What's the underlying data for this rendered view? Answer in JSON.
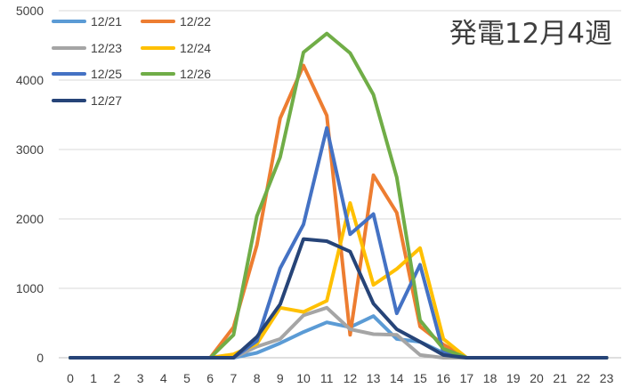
{
  "chart_data": {
    "type": "line",
    "title": "発電12月4週",
    "x": [
      0,
      1,
      2,
      3,
      4,
      5,
      6,
      7,
      8,
      9,
      10,
      11,
      12,
      13,
      14,
      15,
      16,
      17,
      18,
      19,
      20,
      21,
      22,
      23
    ],
    "x_ticks": [
      "0",
      "1",
      "2",
      "3",
      "4",
      "5",
      "6",
      "7",
      "8",
      "9",
      "10",
      "11",
      "12",
      "13",
      "14",
      "15",
      "16",
      "17",
      "18",
      "19",
      "20",
      "21",
      "22",
      "23"
    ],
    "ylim": [
      0,
      5000
    ],
    "y_ticks": [
      "0",
      "1000",
      "2000",
      "3000",
      "4000",
      "5000"
    ],
    "grid": "horizontal",
    "legend_position": "top-left",
    "series": [
      {
        "name": "12/21",
        "color": "#5B9BD5",
        "values": [
          0,
          0,
          0,
          0,
          0,
          0,
          0,
          0,
          70,
          210,
          370,
          510,
          440,
          600,
          270,
          230,
          70,
          0,
          0,
          0,
          0,
          0,
          0,
          0
        ]
      },
      {
        "name": "12/22",
        "color": "#ED7D31",
        "values": [
          0,
          0,
          0,
          0,
          0,
          0,
          0,
          440,
          1620,
          3450,
          4210,
          3490,
          330,
          2630,
          2090,
          450,
          190,
          0,
          0,
          0,
          0,
          0,
          0,
          0
        ]
      },
      {
        "name": "12/23",
        "color": "#A5A5A5",
        "values": [
          0,
          0,
          0,
          0,
          0,
          0,
          0,
          0,
          160,
          270,
          610,
          720,
          410,
          340,
          330,
          40,
          0,
          0,
          0,
          0,
          0,
          0,
          0,
          0
        ]
      },
      {
        "name": "12/24",
        "color": "#FFC000",
        "values": [
          0,
          0,
          0,
          0,
          0,
          0,
          0,
          50,
          200,
          720,
          660,
          820,
          2230,
          1050,
          1280,
          1580,
          270,
          0,
          0,
          0,
          0,
          0,
          0,
          0
        ]
      },
      {
        "name": "12/25",
        "color": "#4472C4",
        "values": [
          0,
          0,
          0,
          0,
          0,
          0,
          0,
          0,
          240,
          1290,
          1920,
          3310,
          1780,
          2070,
          640,
          1340,
          80,
          0,
          0,
          0,
          0,
          0,
          0,
          0
        ]
      },
      {
        "name": "12/26",
        "color": "#70AD47",
        "values": [
          0,
          0,
          0,
          0,
          0,
          0,
          0,
          330,
          2040,
          2890,
          4400,
          4670,
          4390,
          3790,
          2600,
          540,
          130,
          0,
          0,
          0,
          0,
          0,
          0,
          0
        ]
      },
      {
        "name": "12/27",
        "color": "#264478",
        "values": [
          0,
          0,
          0,
          0,
          0,
          0,
          0,
          0,
          300,
          770,
          1710,
          1680,
          1530,
          780,
          410,
          230,
          40,
          0,
          0,
          0,
          0,
          0,
          0,
          0
        ]
      }
    ]
  }
}
